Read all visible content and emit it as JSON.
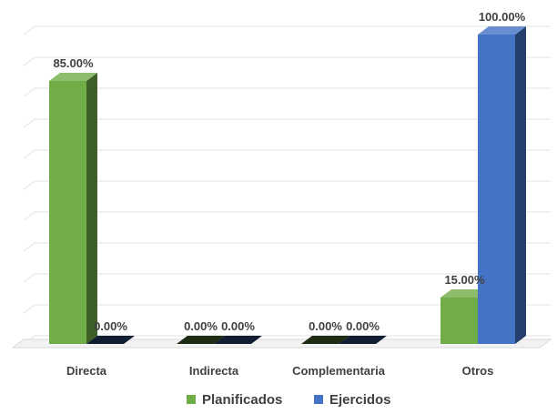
{
  "chart_data": {
    "type": "bar",
    "categories": [
      "Directa",
      "Indirecta",
      "Complementaria",
      "Otros"
    ],
    "series": [
      {
        "name": "Planificados",
        "values": [
          85,
          0,
          0,
          15
        ],
        "labels": [
          "85.00%",
          "0.00%",
          "0.00%",
          "15.00%"
        ],
        "color": "#70ad47"
      },
      {
        "name": "Ejercidos",
        "values": [
          0,
          0,
          0,
          100
        ],
        "labels": [
          "0.00%",
          "0.00%",
          "0.00%",
          "100.00%"
        ],
        "color": "#4472c4"
      }
    ],
    "ylim": [
      0,
      100
    ],
    "grid": true,
    "legend_position": "bottom",
    "three_d": true
  }
}
